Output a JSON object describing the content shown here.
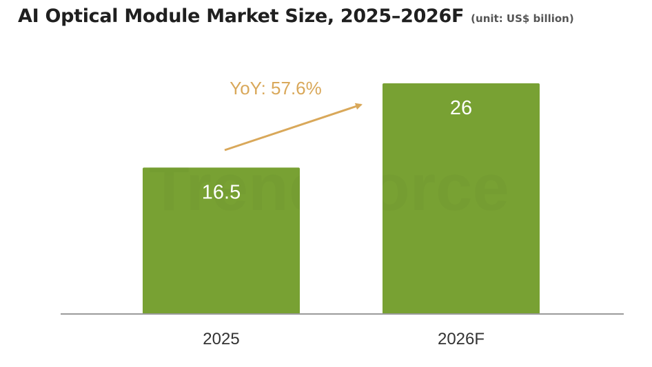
{
  "header": {
    "title": "AI Optical Module Market Size, 2025–2026F",
    "unit": "(unit: US$ billion)"
  },
  "watermark": "TrendForce",
  "colors": {
    "bar": "#78a133",
    "arrow": "#d9a85a",
    "axis": "#9a9a9a",
    "watermark": "#6e9530"
  },
  "chart_data": {
    "type": "bar",
    "categories": [
      "2025",
      "2026F"
    ],
    "values": [
      16.5,
      26
    ],
    "value_labels": [
      "16.5",
      "26"
    ],
    "title": "AI Optical Module Market Size, 2025–2026F",
    "unit": "(unit: US$ billion)",
    "xlabel": "",
    "ylabel": "",
    "ylim": [
      0,
      26
    ],
    "grid": false,
    "annotations": [
      {
        "text": "YoY: 57.6%",
        "type": "arrow",
        "from": "2025",
        "to": "2026F"
      }
    ]
  }
}
